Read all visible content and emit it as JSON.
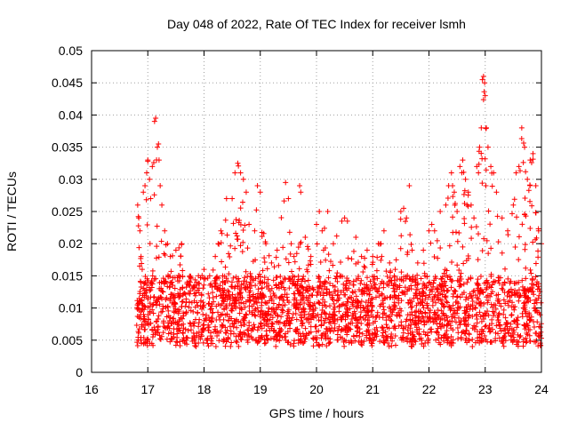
{
  "chart_data": {
    "type": "scatter",
    "title": "Day 048 of 2022, Rate Of TEC Index for receiver lsmh",
    "xlabel": "GPS time / hours",
    "ylabel": "ROTI / TECUs",
    "xlim": [
      16,
      24
    ],
    "ylim": [
      0,
      0.05
    ],
    "xticks": [
      16,
      17,
      18,
      19,
      20,
      21,
      22,
      23,
      24
    ],
    "yticks": [
      0,
      0.005,
      0.01,
      0.015,
      0.02,
      0.025,
      0.03,
      0.035,
      0.04,
      0.045,
      0.05
    ],
    "xtick_labels": [
      "16",
      "17",
      "18",
      "19",
      "20",
      "21",
      "22",
      "23",
      "24"
    ],
    "ytick_labels": [
      "0",
      "0.005",
      "0.01",
      "0.015",
      "0.02",
      "0.025",
      "0.03",
      "0.035",
      "0.04",
      "0.045",
      "0.05"
    ],
    "grid": true,
    "marker": "+",
    "series_color": "#ff0000",
    "data_span": [
      16.8,
      24.0
    ],
    "points": [
      [
        16.82,
        0.026
      ],
      [
        16.84,
        0.024
      ],
      [
        16.86,
        0.022
      ],
      [
        16.88,
        0.018
      ],
      [
        16.9,
        0.016
      ],
      [
        16.92,
        0.028
      ],
      [
        16.95,
        0.029
      ],
      [
        16.98,
        0.031
      ],
      [
        17.0,
        0.033
      ],
      [
        17.03,
        0.03
      ],
      [
        17.05,
        0.027
      ],
      [
        17.08,
        0.032
      ],
      [
        17.12,
        0.039
      ],
      [
        17.14,
        0.0395
      ],
      [
        17.17,
        0.035
      ],
      [
        17.19,
        0.0355
      ],
      [
        17.2,
        0.033
      ],
      [
        17.22,
        0.029
      ],
      [
        17.25,
        0.026
      ],
      [
        17.3,
        0.022
      ],
      [
        17.35,
        0.02
      ],
      [
        17.4,
        0.018
      ],
      [
        17.5,
        0.019
      ],
      [
        17.6,
        0.02
      ],
      [
        17.7,
        0.014
      ],
      [
        17.8,
        0.013
      ],
      [
        17.9,
        0.015
      ],
      [
        18.0,
        0.016
      ],
      [
        18.1,
        0.015
      ],
      [
        18.2,
        0.018
      ],
      [
        18.25,
        0.02
      ],
      [
        18.3,
        0.022
      ],
      [
        18.4,
        0.027
      ],
      [
        18.5,
        0.027
      ],
      [
        18.55,
        0.031
      ],
      [
        18.6,
        0.0325
      ],
      [
        18.65,
        0.031
      ],
      [
        18.7,
        0.03
      ],
      [
        18.75,
        0.028
      ],
      [
        18.8,
        0.023
      ],
      [
        18.9,
        0.022
      ],
      [
        18.95,
        0.029
      ],
      [
        19.0,
        0.028
      ],
      [
        19.1,
        0.02
      ],
      [
        19.2,
        0.017
      ],
      [
        19.3,
        0.019
      ],
      [
        19.45,
        0.0295
      ],
      [
        19.5,
        0.027
      ],
      [
        19.55,
        0.02
      ],
      [
        19.6,
        0.018
      ],
      [
        19.7,
        0.029
      ],
      [
        19.72,
        0.028
      ],
      [
        19.8,
        0.021
      ],
      [
        19.9,
        0.018
      ],
      [
        20.0,
        0.023
      ],
      [
        20.05,
        0.025
      ],
      [
        20.1,
        0.022
      ],
      [
        20.2,
        0.025
      ],
      [
        20.3,
        0.02
      ],
      [
        20.45,
        0.0235
      ],
      [
        20.5,
        0.024
      ],
      [
        20.55,
        0.0235
      ],
      [
        20.7,
        0.021
      ],
      [
        20.8,
        0.018
      ],
      [
        20.9,
        0.019
      ],
      [
        21.0,
        0.018
      ],
      [
        21.1,
        0.02
      ],
      [
        21.2,
        0.022
      ],
      [
        21.3,
        0.017
      ],
      [
        21.4,
        0.016
      ],
      [
        21.5,
        0.025
      ],
      [
        21.55,
        0.0255
      ],
      [
        21.6,
        0.024
      ],
      [
        21.65,
        0.029
      ],
      [
        21.7,
        0.019
      ],
      [
        21.8,
        0.017
      ],
      [
        21.9,
        0.019
      ],
      [
        22.0,
        0.022
      ],
      [
        22.05,
        0.023
      ],
      [
        22.1,
        0.022
      ],
      [
        22.2,
        0.025
      ],
      [
        22.3,
        0.026
      ],
      [
        22.35,
        0.029
      ],
      [
        22.4,
        0.031
      ],
      [
        22.45,
        0.028
      ],
      [
        22.5,
        0.025
      ],
      [
        22.55,
        0.032
      ],
      [
        22.6,
        0.033
      ],
      [
        22.65,
        0.03
      ],
      [
        22.7,
        0.028
      ],
      [
        22.75,
        0.026
      ],
      [
        22.8,
        0.024
      ],
      [
        22.85,
        0.032
      ],
      [
        22.9,
        0.035
      ],
      [
        22.93,
        0.038
      ],
      [
        22.95,
        0.0455
      ],
      [
        22.97,
        0.046
      ],
      [
        22.99,
        0.045
      ],
      [
        23.0,
        0.043
      ],
      [
        23.02,
        0.038
      ],
      [
        23.05,
        0.035
      ],
      [
        23.1,
        0.032
      ],
      [
        23.15,
        0.031
      ],
      [
        23.2,
        0.028
      ],
      [
        23.3,
        0.024
      ],
      [
        23.4,
        0.022
      ],
      [
        23.5,
        0.026
      ],
      [
        23.55,
        0.031
      ],
      [
        23.6,
        0.032
      ],
      [
        23.65,
        0.038
      ],
      [
        23.7,
        0.035
      ],
      [
        23.75,
        0.03
      ],
      [
        23.8,
        0.033
      ],
      [
        23.85,
        0.034
      ],
      [
        23.9,
        0.029
      ],
      [
        23.95,
        0.022
      ],
      [
        24.0,
        0.02
      ]
    ]
  }
}
